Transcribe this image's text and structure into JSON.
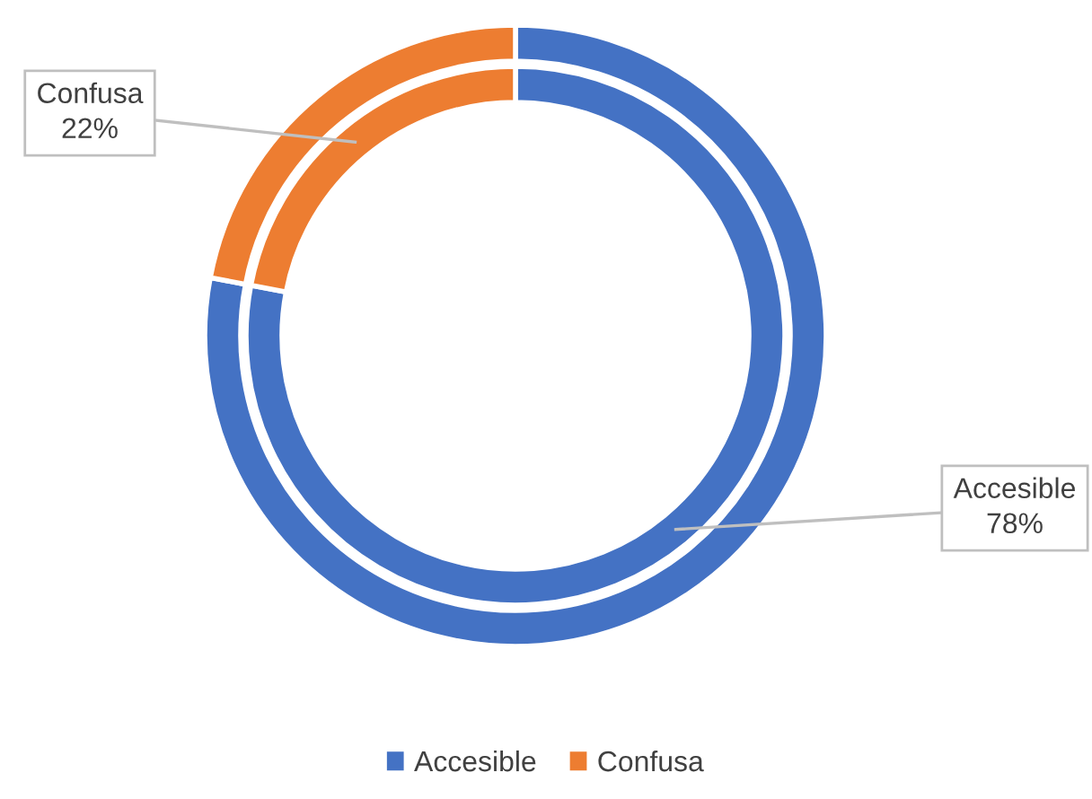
{
  "chart_data": {
    "type": "donut",
    "categories": [
      "Accesible",
      "Confusa"
    ],
    "colors": [
      "#4472c4",
      "#ed7d31"
    ],
    "series": [
      {
        "values": [
          78,
          22
        ]
      },
      {
        "values": [
          78,
          22
        ],
        "value_labels": [
          "78%",
          "22%"
        ]
      }
    ],
    "legend": "bottom"
  }
}
